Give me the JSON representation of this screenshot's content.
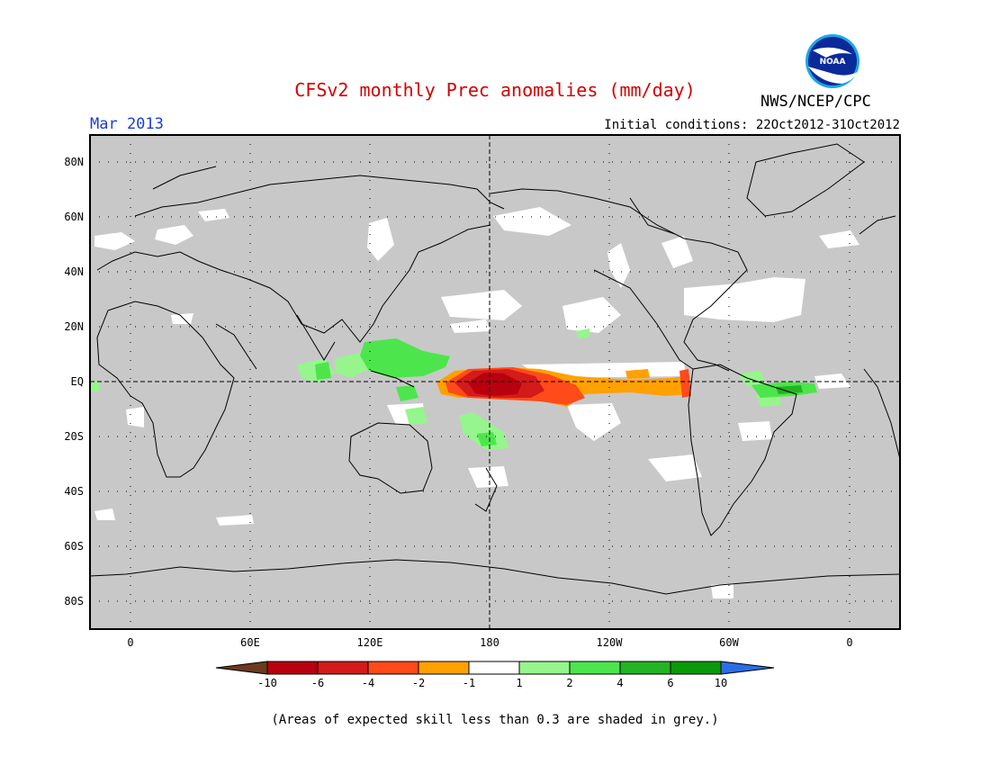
{
  "header": {
    "title": "CFSv2 monthly Prec anomalies (mm/day)",
    "month": "Mar 2013",
    "initial_conditions": "Initial conditions: 22Oct2012-31Oct2012",
    "agency": "NWS/NCEP/CPC",
    "logo_text": "NOAA"
  },
  "axes": {
    "lat_labels": [
      "80N",
      "60N",
      "40N",
      "20N",
      "EQ",
      "20S",
      "40S",
      "60S",
      "80S"
    ],
    "lon_labels": [
      "0",
      "60E",
      "120E",
      "180",
      "120W",
      "60W",
      "0"
    ]
  },
  "colorbar": {
    "labels": [
      "-10",
      "-6",
      "-4",
      "-2",
      "-1",
      "1",
      "2",
      "4",
      "6",
      "10"
    ],
    "colors": [
      "#6b3a1f",
      "#b8000f",
      "#d41a1a",
      "#ff4a1a",
      "#ffa100",
      "#ffffff",
      "#96f58c",
      "#4ce64c",
      "#22b422",
      "#0a9a0a",
      "#2a6ee6"
    ]
  },
  "palette": {
    "grey": "#c8c8c8",
    "white": "#ffffff",
    "light_green": "#96f58c",
    "green": "#4ce64c",
    "dark_green": "#22b422",
    "orange": "#ffa100",
    "red_orange": "#ff4a1a",
    "red": "#d41a1a",
    "dark_red": "#b8000f"
  },
  "note": "(Areas of expected skill less than 0.3 are shaded in grey.)"
}
